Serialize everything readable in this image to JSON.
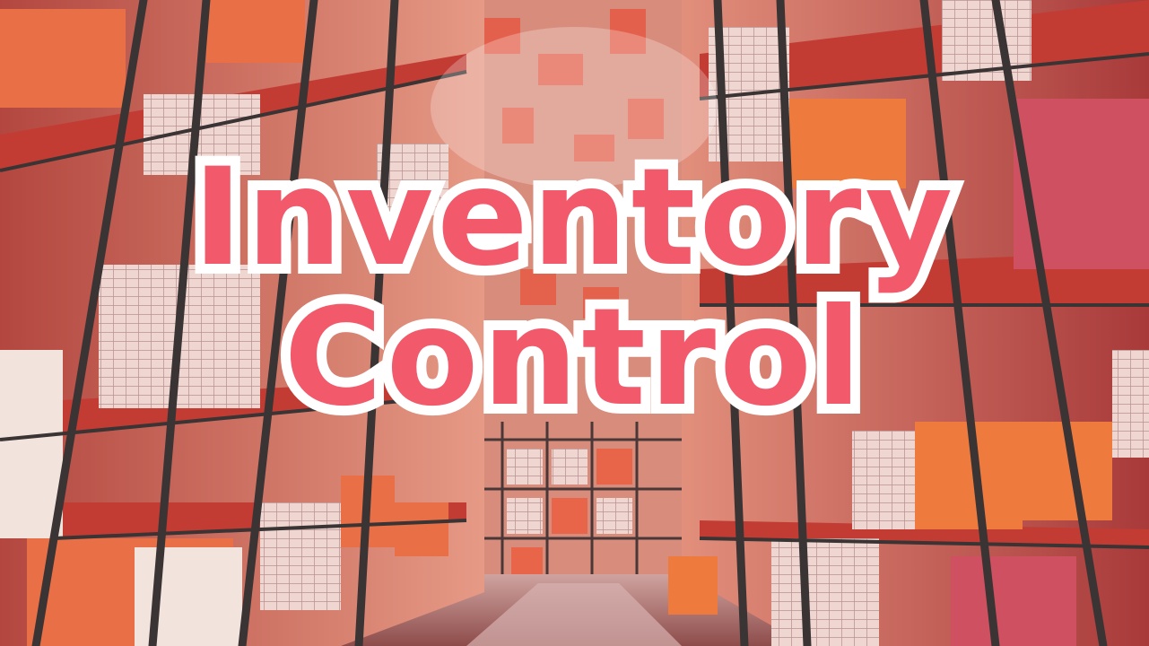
{
  "title": {
    "line1": "Inventory",
    "line2": "Control"
  },
  "colors": {
    "title_fill": "#f2596a",
    "title_outline": "#ffffff",
    "shelf_red": "#c8453c",
    "box_orange": "#ee7a3e",
    "box_pale": "#efd9d4",
    "rack_frame": "#3a3434"
  }
}
